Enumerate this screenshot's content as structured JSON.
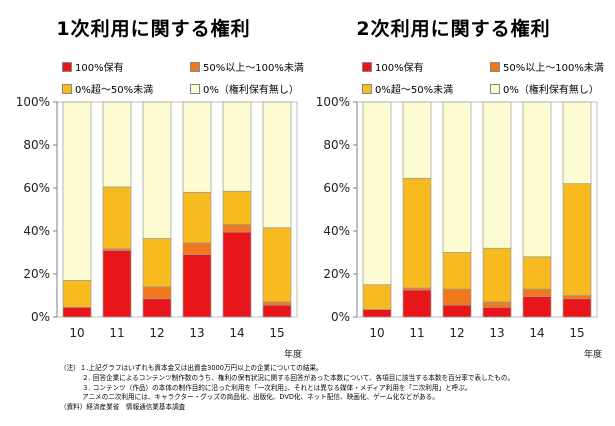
{
  "legend": {
    "full": "100%保有",
    "over50": "50%以上～100%未満",
    "under50": "0%超～50%未満",
    "none": "0%（権利保有無し）"
  },
  "colors": {
    "full": "#e8161a",
    "over50": "#f0781e",
    "under50": "#f7bb20",
    "none": "#fdfbd2"
  },
  "chart_data": [
    {
      "type": "bar",
      "stacked": true,
      "title": "1次利用に関する権利",
      "categories": [
        "10",
        "11",
        "12",
        "13",
        "14",
        "15"
      ],
      "xlabel": "年度",
      "ylabel": "",
      "ylim": [
        0,
        100
      ],
      "yticks": [
        "0%",
        "20%",
        "40%",
        "60%",
        "80%",
        "100%"
      ],
      "series": [
        {
          "name": "100%保有",
          "key": "full",
          "values": [
            4.5,
            31,
            8.5,
            29,
            39.5,
            5.5
          ]
        },
        {
          "name": "50%以上～100%未満",
          "key": "over50",
          "values": [
            0,
            0.7,
            5.5,
            5.5,
            3.5,
            1.5
          ]
        },
        {
          "name": "0%超～50%未満",
          "key": "under50",
          "values": [
            12.5,
            28.8,
            22.5,
            23.5,
            15.5,
            34.5
          ]
        },
        {
          "name": "0%（権利保有無し）",
          "key": "none",
          "values": [
            83,
            39.5,
            63.5,
            42,
            41.5,
            58.5
          ]
        }
      ]
    },
    {
      "type": "bar",
      "stacked": true,
      "title": "2次利用に関する権利",
      "categories": [
        "10",
        "11",
        "12",
        "13",
        "14",
        "15"
      ],
      "xlabel": "年度",
      "ylabel": "",
      "ylim": [
        0,
        100
      ],
      "yticks": [
        "0%",
        "20%",
        "40%",
        "60%",
        "80%",
        "100%"
      ],
      "series": [
        {
          "name": "100%保有",
          "key": "full",
          "values": [
            3.5,
            12.5,
            5.5,
            4.5,
            9.5,
            8.5
          ]
        },
        {
          "name": "50%以上～100%未満",
          "key": "over50",
          "values": [
            0,
            1,
            7.5,
            2.5,
            3.5,
            1.5
          ]
        },
        {
          "name": "0%超～50%未満",
          "key": "under50",
          "values": [
            11.5,
            51,
            17,
            25,
            15,
            52
          ]
        },
        {
          "name": "0%（権利保有無し）",
          "key": "none",
          "values": [
            85,
            35.5,
            70,
            68,
            72,
            38
          ]
        }
      ]
    }
  ],
  "notes": {
    "line1": "（注）１.上記グラフはいずれも資本金又は出資金3000万円以上の企業についての結果。",
    "line2": "２. 回答企業によるコンテンツ制作数のうち、権利の保有状況に関する回答があった本数について、各項目に該当する本数を百分率で表したもの。",
    "line3": "３. コンテンツ（作品）の本体の制作目的に沿った利用を「一次利用」、それとは異なる媒体・メディア利用を「二次利用」と呼ぶ。",
    "line4": "アニメの二次利用には、キャラクター・グッズの商品化、出版化、DVD化、ネット配信、映画化、ゲーム化などがある。",
    "line5": "（資料）経済産業省　情報通信業基本調査"
  }
}
